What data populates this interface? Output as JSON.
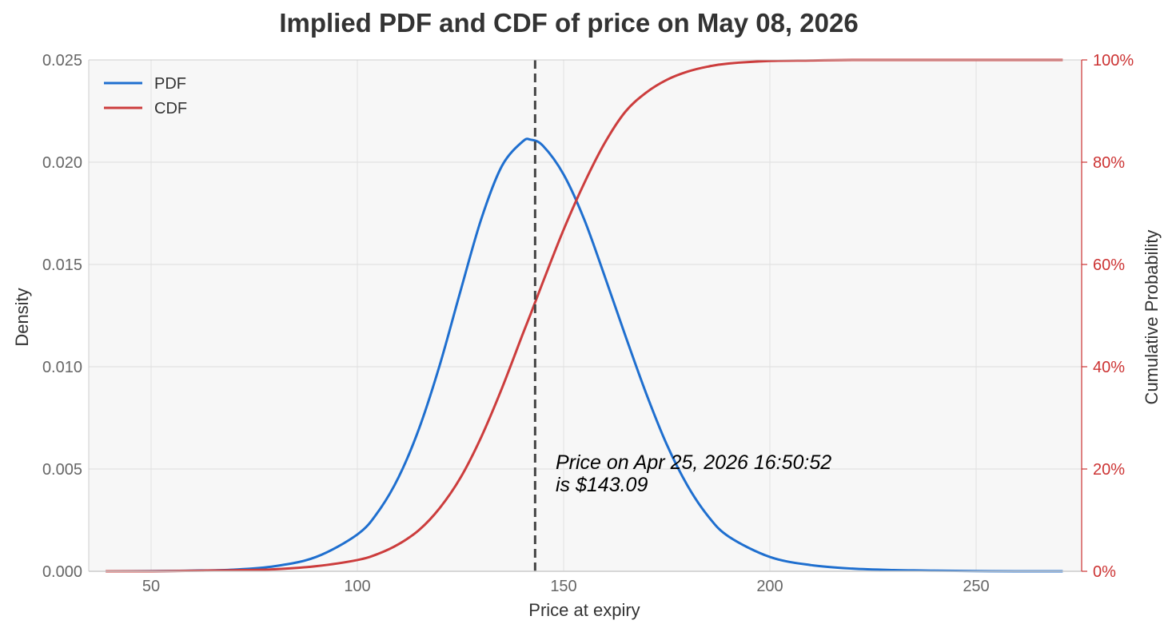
{
  "chart_data": {
    "type": "line",
    "title": "Implied PDF and CDF of price on May 08, 2026",
    "xlabel": "Price at expiry",
    "ylabel": "Density",
    "ylabel_right": "Cumulative Probability",
    "xlim": [
      35,
      278
    ],
    "ylim": [
      0,
      0.025
    ],
    "ylim_right": [
      0,
      1
    ],
    "x_ticks": [
      50,
      100,
      150,
      200,
      250
    ],
    "y_ticks": [
      "0.000",
      "0.005",
      "0.010",
      "0.015",
      "0.020",
      "0.025"
    ],
    "y_ticks_right": [
      "0%",
      "20%",
      "40%",
      "60%",
      "80%",
      "100%"
    ],
    "grid": true,
    "legend": {
      "position": "upper left",
      "entries": [
        "PDF",
        "CDF"
      ]
    },
    "colors": {
      "PDF": "#1f6fcf",
      "CDF": "#cc3d3d",
      "vline": "#444444",
      "right_axis": "#cc3333",
      "plot_bg": "#f7f7f7"
    },
    "x": [
      39,
      50,
      60,
      70,
      80,
      90,
      100,
      105,
      110,
      115,
      120,
      125,
      130,
      135,
      140,
      142,
      145,
      150,
      155,
      160,
      165,
      170,
      175,
      180,
      185,
      190,
      200,
      210,
      220,
      230,
      240,
      250,
      260,
      271
    ],
    "series": [
      {
        "name": "PDF",
        "axis": "left",
        "values": [
          0.0,
          1e-05,
          3e-05,
          8e-05,
          0.00025,
          0.0007,
          0.0018,
          0.0029,
          0.0046,
          0.007,
          0.0101,
          0.0137,
          0.0172,
          0.0198,
          0.021,
          0.0211,
          0.0208,
          0.0194,
          0.0172,
          0.0144,
          0.0115,
          0.0087,
          0.0062,
          0.0042,
          0.0027,
          0.0017,
          0.0007,
          0.0003,
          0.00013,
          6e-05,
          3e-05,
          1e-05,
          0.0,
          0.0
        ]
      },
      {
        "name": "CDF",
        "axis": "right",
        "values": [
          0.0,
          0.0,
          0.001,
          0.002,
          0.004,
          0.01,
          0.022,
          0.034,
          0.053,
          0.081,
          0.124,
          0.183,
          0.262,
          0.357,
          0.462,
          0.503,
          0.566,
          0.668,
          0.759,
          0.838,
          0.899,
          0.936,
          0.961,
          0.977,
          0.987,
          0.993,
          0.998,
          0.999,
          1.0,
          1.0,
          1.0,
          1.0,
          1.0,
          1.0
        ]
      }
    ],
    "annotations": [
      {
        "type": "vline",
        "x": 143.09,
        "style": "dashed"
      },
      {
        "type": "text",
        "x": 148,
        "y": 0.0052,
        "lines": [
          "Price on Apr 25, 2026 16:50:52",
          "is $143.09"
        ]
      }
    ]
  }
}
